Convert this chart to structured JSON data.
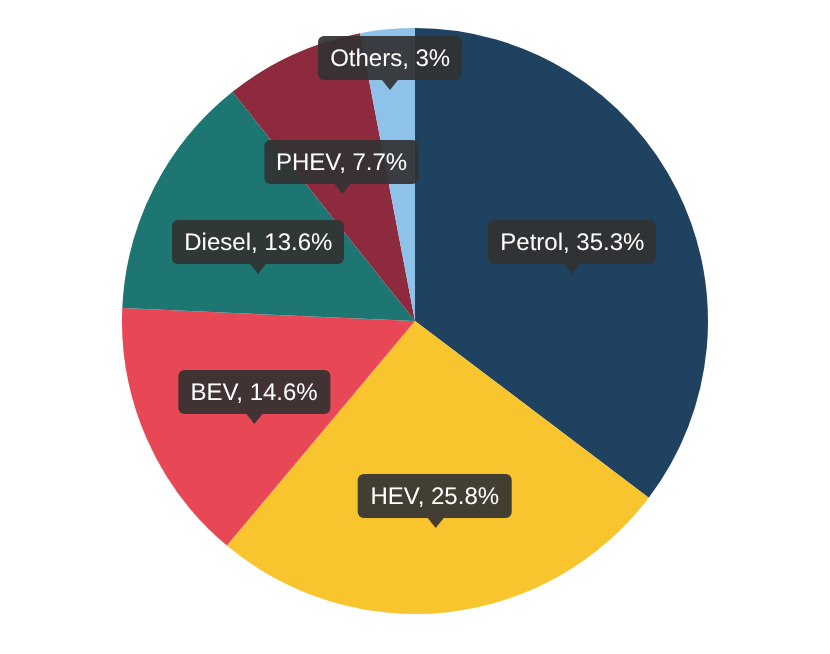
{
  "chart_data": {
    "type": "pie",
    "categories": [
      "Petrol",
      "HEV",
      "BEV",
      "Diesel",
      "PHEV",
      "Others"
    ],
    "values": [
      35.3,
      25.8,
      14.6,
      13.6,
      7.7,
      3
    ],
    "colors": [
      "#1f4260",
      "#f9c52e",
      "#e84855",
      "#1e7672",
      "#8e2a3e",
      "#8ec2e8"
    ],
    "value_labels": [
      ", 35.3%",
      ", 25.8%",
      ", 14.6%",
      ", 13.6%",
      ", 7.7%",
      ", 3%"
    ],
    "legend": false
  }
}
